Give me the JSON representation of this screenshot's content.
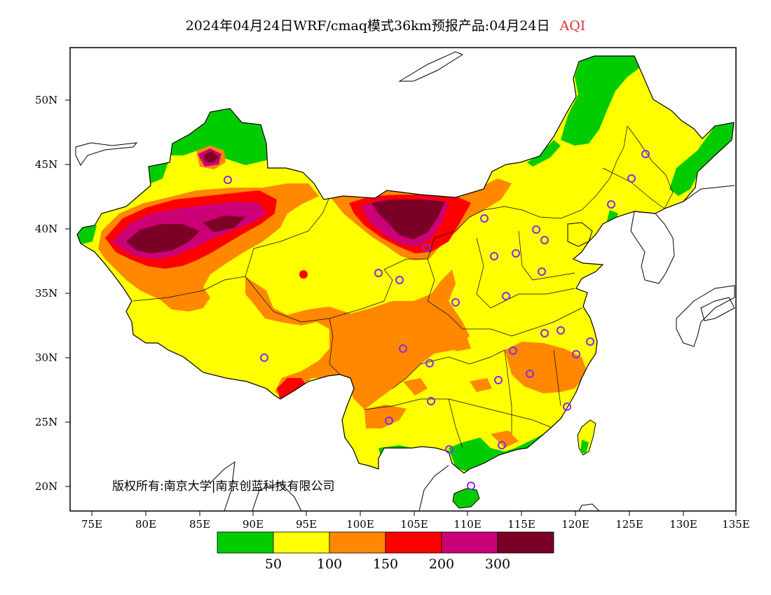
{
  "title": {
    "main": "2024年04月24日WRF/cmaq模式36km预报产品:04月24日",
    "variable": "AQI"
  },
  "axes": {
    "y_ticks": [
      "50N",
      "45N",
      "40N",
      "35N",
      "30N",
      "25N",
      "20N"
    ],
    "x_ticks": [
      "75E",
      "80E",
      "85E",
      "90E",
      "95E",
      "100E",
      "105E",
      "110E",
      "115E",
      "120E",
      "125E",
      "130E",
      "135E"
    ]
  },
  "copyright": "版权所有:南京大学|南京创蓝科技有限公司",
  "colorbar": {
    "colors": [
      "#00cc00",
      "#ffff00",
      "#ff8800",
      "#ff0000",
      "#cc0077",
      "#7a0025"
    ],
    "labels": [
      "50",
      "100",
      "150",
      "200",
      "300"
    ]
  },
  "map_layers": {
    "land_color": "#ffff00",
    "green": "#00cc00",
    "orange": "#ff8800",
    "red": "#ff0000",
    "magenta": "#cc0077",
    "maroon": "#7a0025",
    "city_marker_color": "#8a2be2"
  }
}
